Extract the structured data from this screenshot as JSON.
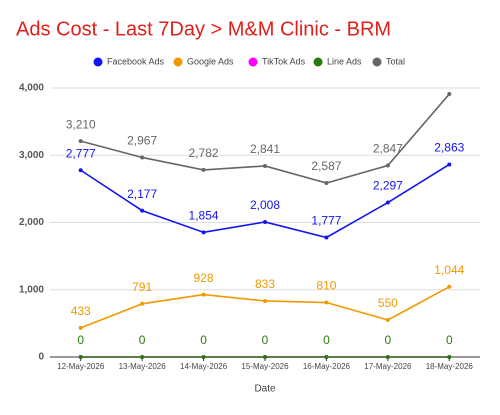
{
  "chart_data": {
    "type": "line",
    "title": "Ads Cost - Last 7Day > M&M Clinic - BRM",
    "xlabel": "Date",
    "categories": [
      "12-May-2026",
      "13-May-2026",
      "14-May-2026",
      "15-May-2026",
      "16-May-2026",
      "17-May-2026",
      "18-May-2026"
    ],
    "series": [
      {
        "name": "Facebook Ads",
        "color": "#1414f0",
        "values": [
          2777,
          2177,
          1854,
          2008,
          1777,
          2297,
          2863
        ],
        "value_labels": [
          "2,777",
          "2,177",
          "1,854",
          "2,008",
          "1,777",
          "2,297",
          "2,863"
        ]
      },
      {
        "name": "Google Ads",
        "color": "#f09a00",
        "values": [
          433,
          791,
          928,
          833,
          810,
          550,
          1044
        ],
        "value_labels": [
          "433",
          "791",
          "928",
          "833",
          "810",
          "550",
          "1,044"
        ]
      },
      {
        "name": "TikTok Ads",
        "color": "#ff00ff",
        "values": [
          0,
          0,
          0,
          0,
          0,
          0,
          0
        ],
        "show_labels": false
      },
      {
        "name": "Line Ads",
        "color": "#2a7a10",
        "values": [
          0,
          0,
          0,
          0,
          0,
          0,
          0
        ],
        "show_labels": true
      },
      {
        "name": "Total",
        "color": "#666666",
        "values": [
          3210,
          2967,
          2782,
          2841,
          2587,
          2847,
          3910
        ],
        "value_labels": [
          "3,210",
          "2,967",
          "2,782",
          "2,841",
          "2,587",
          "2,847",
          null
        ]
      }
    ],
    "ylim": [
      0,
      4000
    ],
    "yticks": [
      0,
      {
        "value": 1000,
        "label": "1,000"
      },
      {
        "value": 2000,
        "label": "2,000"
      },
      {
        "value": 3000,
        "label": "3,000"
      },
      {
        "value": 4000,
        "label": "4,000"
      }
    ],
    "grid": true,
    "legend": "top"
  }
}
